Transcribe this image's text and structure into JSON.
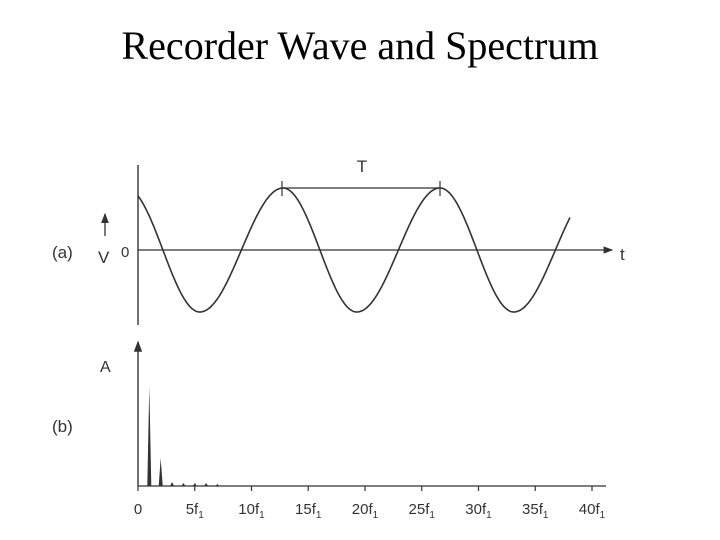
{
  "slide": {
    "title": "Recorder Wave and Spectrum"
  },
  "panel_a": {
    "label": "(a)",
    "v_axis_label": "V",
    "zero_label": "0",
    "time_axis_label": "t",
    "period_label": "T"
  },
  "panel_b": {
    "label": "(b)",
    "amplitude_axis_label": "A",
    "tick_labels": [
      "0",
      "5f",
      "10f",
      "15f",
      "20f",
      "25f",
      "30f",
      "35f",
      "40f"
    ],
    "subscript": "1"
  },
  "chart_data": {
    "type": "bar",
    "x": [
      1,
      2,
      3,
      4,
      5,
      6,
      7
    ],
    "values": [
      1.0,
      0.28,
      0.04,
      0.03,
      0.03,
      0.03,
      0.02
    ]
  },
  "colors": {
    "ink": "#333333",
    "background": "#ffffff"
  }
}
